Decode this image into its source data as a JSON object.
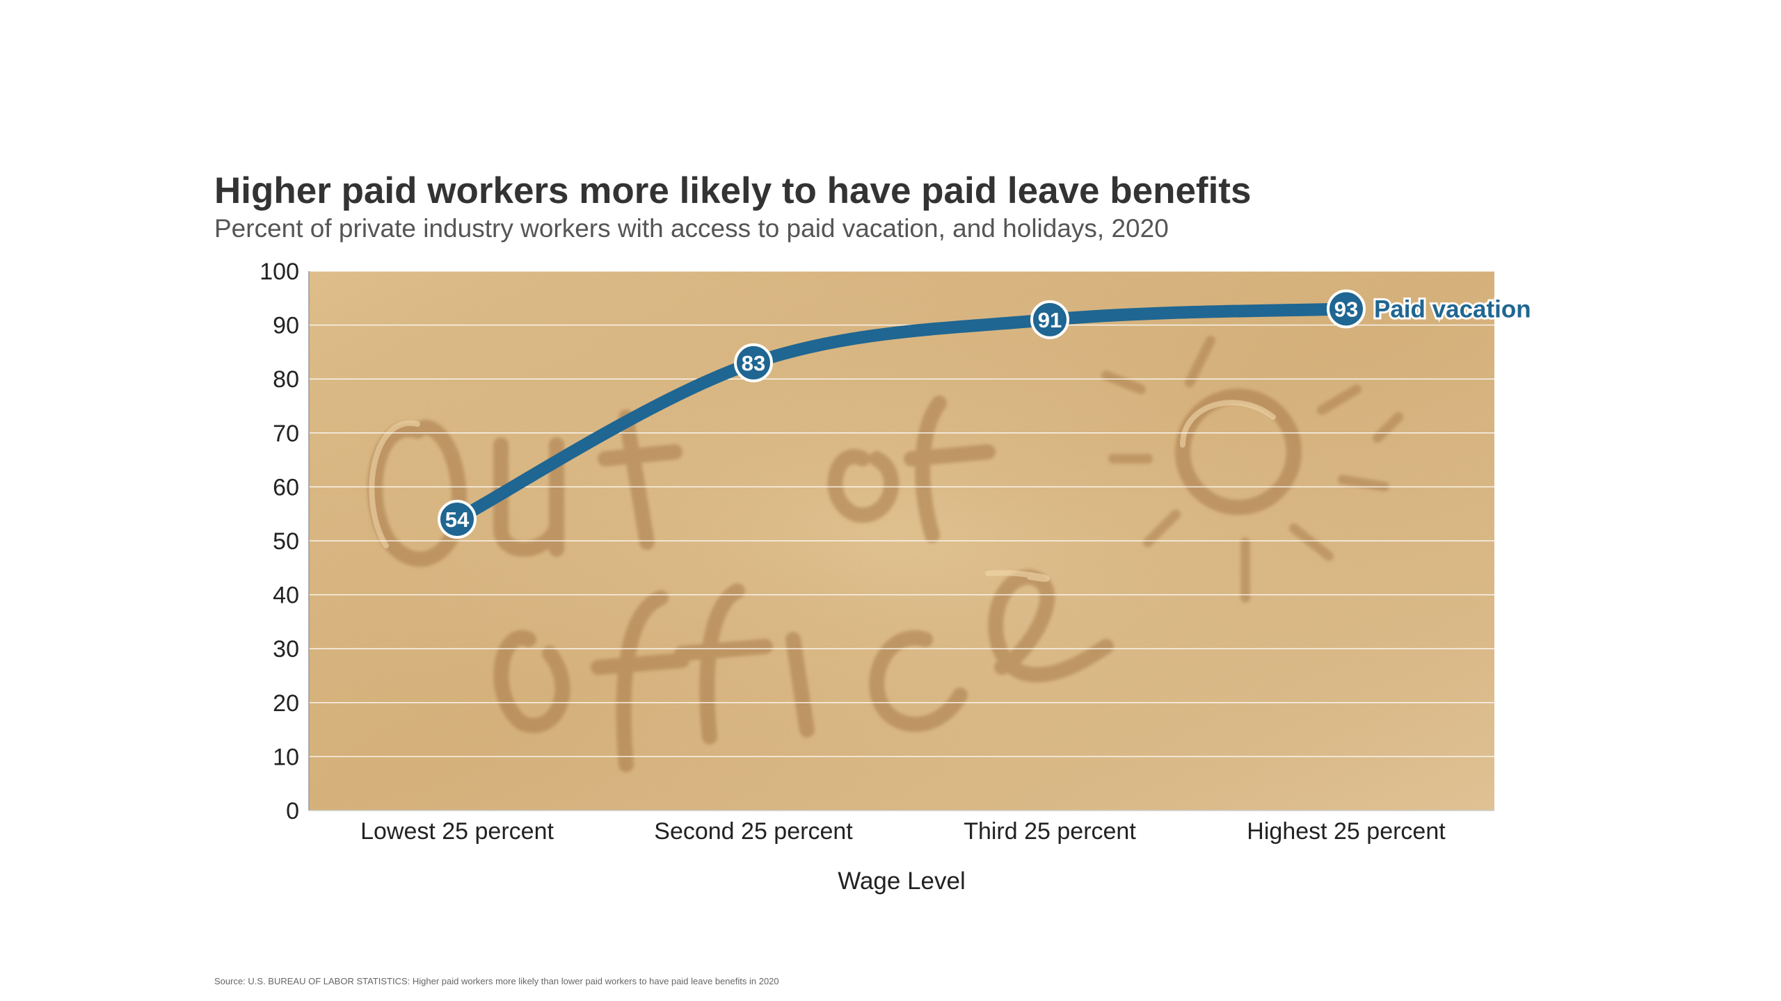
{
  "chart_data": {
    "type": "line",
    "title": "Higher paid workers more likely to have paid leave benefits",
    "subtitle": "Percent of private industry workers with access to paid vacation, and holidays, 2020",
    "xlabel": "Wage Level",
    "ylabel": "",
    "categories": [
      "Lowest 25 percent",
      "Second 25 percent",
      "Third 25 percent",
      "Highest 25 percent"
    ],
    "series": [
      {
        "name": "Paid vacation",
        "values": [
          54,
          83,
          91,
          93
        ],
        "color": "#1f6692"
      }
    ],
    "ylim": [
      0,
      100
    ],
    "yticks": [
      0,
      10,
      20,
      30,
      40,
      50,
      60,
      70,
      80,
      90,
      100
    ],
    "grid": true,
    "background": "sand image with \"Out of office\" and sun drawn in sand",
    "source": "Source: U.S. BUREAU OF LABOR STATISTICS: Higher paid workers more likely than lower paid workers to have paid leave benefits in 2020"
  }
}
